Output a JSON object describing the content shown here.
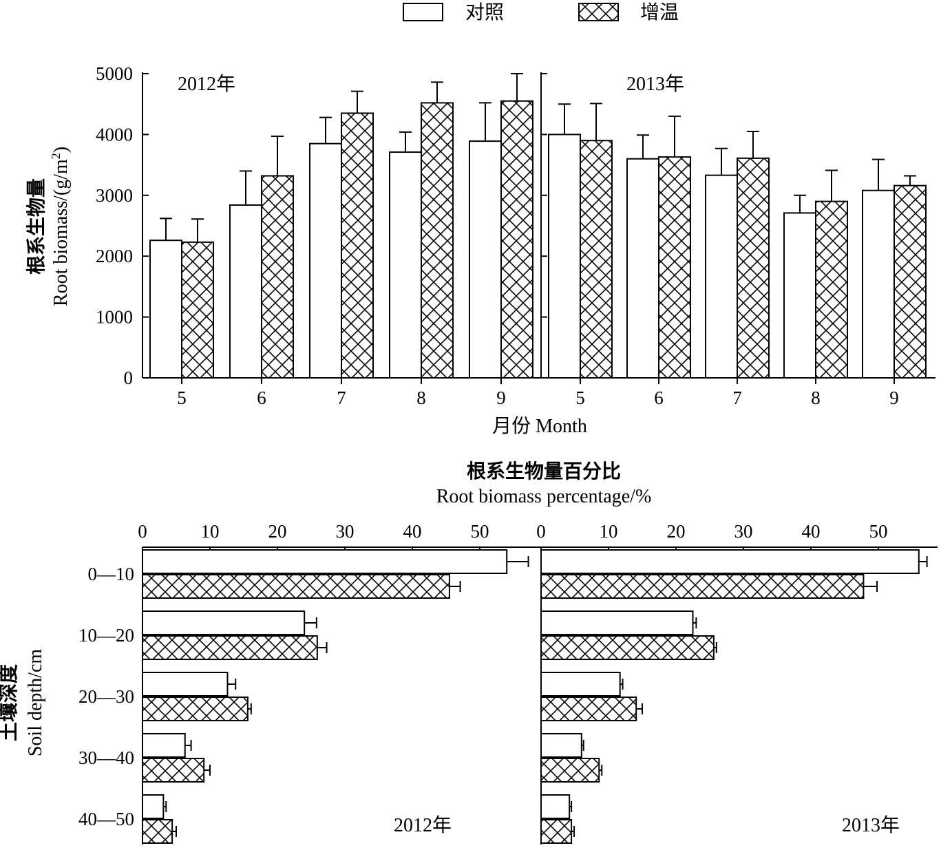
{
  "legend": {
    "control_label": "对照",
    "warming_label": "增温"
  },
  "colors": {
    "axis": "#000000",
    "control_fill": "#ffffff",
    "hatch": "#000000"
  },
  "chart_data": [
    {
      "type": "bar",
      "orientation": "vertical",
      "ylabel_cn": "根系生物量",
      "ylabel_en": "Root biomass/(g/m",
      "ylabel_sup": "2",
      "ylabel_tail": ")",
      "xlabel": "月份 Month",
      "ylim": [
        0,
        5000
      ],
      "yticks": [
        "0",
        "1000",
        "2000",
        "3000",
        "4000",
        "5000"
      ],
      "panels": [
        {
          "year_label": "2012年",
          "categories": [
            "5",
            "6",
            "7",
            "8",
            "9"
          ],
          "series": [
            {
              "name": "对照",
              "values": [
                2260,
                2840,
                3850,
                3710,
                3890
              ],
              "errors": [
                360,
                560,
                430,
                330,
                630
              ]
            },
            {
              "name": "增温",
              "values": [
                2230,
                3320,
                4350,
                4520,
                4550
              ],
              "errors": [
                380,
                650,
                360,
                340,
                450
              ]
            }
          ]
        },
        {
          "year_label": "2013年",
          "categories": [
            "5",
            "6",
            "7",
            "8",
            "9"
          ],
          "series": [
            {
              "name": "对照",
              "values": [
                4000,
                3600,
                3330,
                2710,
                3080
              ],
              "errors": [
                500,
                390,
                440,
                290,
                510
              ]
            },
            {
              "name": "增温",
              "values": [
                3900,
                3630,
                3610,
                2900,
                3160
              ],
              "errors": [
                610,
                670,
                440,
                510,
                160
              ]
            }
          ]
        }
      ]
    },
    {
      "type": "bar",
      "orientation": "horizontal",
      "title_cn": "根系生物量百分比",
      "title_en": "Root biomass percentage/%",
      "ylabel_cn": "土壤深度",
      "ylabel_en": "Soil depth/cm",
      "xlim": [
        0,
        59
      ],
      "xticks": [
        "0",
        "10",
        "20",
        "30",
        "40",
        "50"
      ],
      "categories": [
        "0—10",
        "10—20",
        "20—30",
        "30—40",
        "40—50"
      ],
      "panels": [
        {
          "year_label": "2012年",
          "series": [
            {
              "name": "对照",
              "values": [
                54.0,
                24.0,
                12.6,
                6.3,
                3.1
              ],
              "errors": [
                3.2,
                1.8,
                1.2,
                0.9,
                0.4
              ]
            },
            {
              "name": "增温",
              "values": [
                45.5,
                25.9,
                15.6,
                9.1,
                4.4
              ],
              "errors": [
                1.6,
                1.4,
                0.5,
                0.9,
                0.6
              ]
            }
          ]
        },
        {
          "year_label": "2013年",
          "series": [
            {
              "name": "对照",
              "values": [
                56.0,
                22.5,
                11.7,
                6.0,
                4.2
              ],
              "errors": [
                1.2,
                0.5,
                0.4,
                0.3,
                0.3
              ]
            },
            {
              "name": "增温",
              "values": [
                47.8,
                25.6,
                14.1,
                8.6,
                4.5
              ],
              "errors": [
                2.0,
                0.4,
                0.9,
                0.4,
                0.4
              ]
            }
          ]
        }
      ]
    }
  ]
}
